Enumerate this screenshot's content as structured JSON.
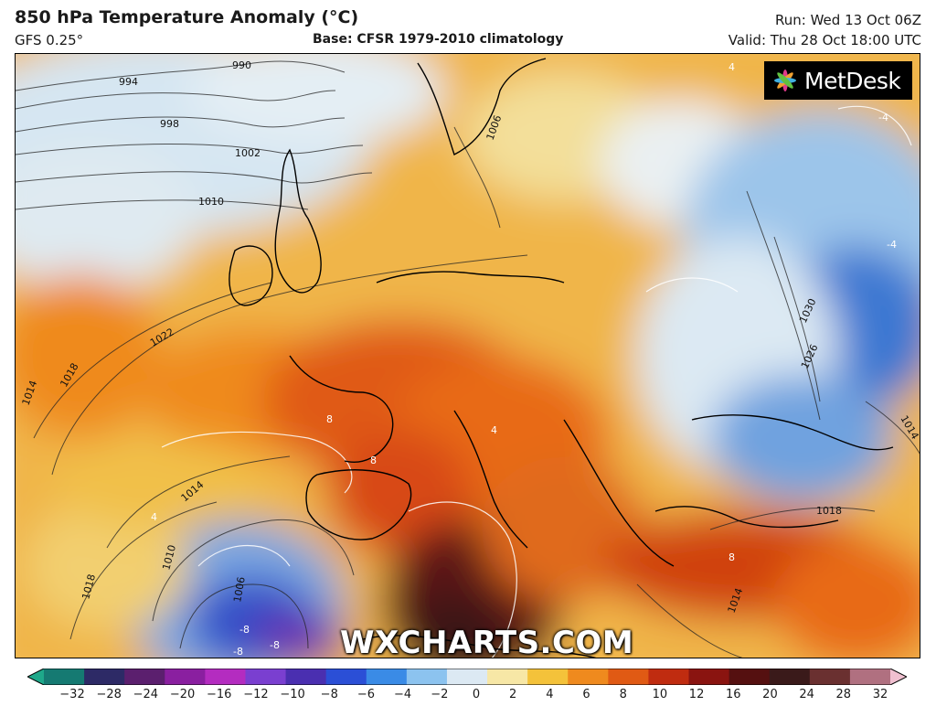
{
  "header": {
    "title": "850 hPa Temperature Anomaly (°C)",
    "model": "GFS 0.25°",
    "base": "Base: CFSR 1979-2010 climatology",
    "run": "Run: Wed 13 Oct 06Z",
    "valid": "Valid: Thu 28 Oct 18:00 UTC"
  },
  "logo": {
    "text": "MetDesk",
    "icon": "metdesk-star-icon"
  },
  "watermark": "WXCHARTS.COM",
  "map": {
    "region": "Europe",
    "variable": "850 hPa temperature anomaly",
    "overlay": "mean sea level pressure isobars",
    "isobar_labels": [
      {
        "id": "iso-990",
        "text": "990"
      },
      {
        "id": "iso-994",
        "text": "994"
      },
      {
        "id": "iso-998",
        "text": "998"
      },
      {
        "id": "iso-1002",
        "text": "1002"
      },
      {
        "id": "iso-1010",
        "text": "1010"
      },
      {
        "id": "iso-1006",
        "text": "1006"
      },
      {
        "id": "iso-1022",
        "text": "1022"
      },
      {
        "id": "iso-1018-west",
        "text": "1018"
      },
      {
        "id": "iso-1014-west",
        "text": "1014"
      },
      {
        "id": "iso-1014-sw",
        "text": "1014"
      },
      {
        "id": "iso-1010-sw",
        "text": "1010"
      },
      {
        "id": "iso-1018-sw",
        "text": "1018"
      },
      {
        "id": "iso-1006-low",
        "text": "1006"
      },
      {
        "id": "iso-1030",
        "text": "1030"
      },
      {
        "id": "iso-1026",
        "text": "1026"
      },
      {
        "id": "iso-1014-east",
        "text": "1014"
      },
      {
        "id": "iso-1018-east",
        "text": "1018"
      },
      {
        "id": "iso-1014-south",
        "text": "1014"
      }
    ],
    "anomaly_labels": [
      {
        "id": "anom-8-france",
        "text": "8"
      },
      {
        "id": "anom-8-spain",
        "text": "8"
      },
      {
        "id": "anom-4-alps",
        "text": "4"
      },
      {
        "id": "anom-8-greece",
        "text": "8"
      },
      {
        "id": "anom-minus8-a",
        "text": "-8"
      },
      {
        "id": "anom-minus8-b",
        "text": "-8"
      },
      {
        "id": "anom-minus8-c",
        "text": "-8"
      },
      {
        "id": "anom-minus4-russia",
        "text": "-4"
      },
      {
        "id": "anom-minus4-ne",
        "text": "-4"
      },
      {
        "id": "anom-4-north",
        "text": "4"
      },
      {
        "id": "anom-4-west",
        "text": "4"
      }
    ]
  },
  "colorbar": {
    "ticks": [
      "−32",
      "−28",
      "−24",
      "−20",
      "−16",
      "−12",
      "−10",
      "−8",
      "−6",
      "−4",
      "−2",
      "0",
      "2",
      "4",
      "6",
      "8",
      "10",
      "12",
      "16",
      "20",
      "24",
      "28",
      "32"
    ],
    "colors": [
      "#1ea88a",
      "#157a72",
      "#2d2a66",
      "#5b1f6e",
      "#8a1fa0",
      "#b42cc0",
      "#7a3fd0",
      "#4a2fb0",
      "#2b4fd6",
      "#3a8be6",
      "#8cc3ef",
      "#dce9f3",
      "#f7e7a6",
      "#f4c23a",
      "#ef8a1e",
      "#e05a14",
      "#c02c10",
      "#8a1410",
      "#551010",
      "#3a1a1a",
      "#6a3030",
      "#b07080",
      "#f0c0d0"
    ]
  }
}
